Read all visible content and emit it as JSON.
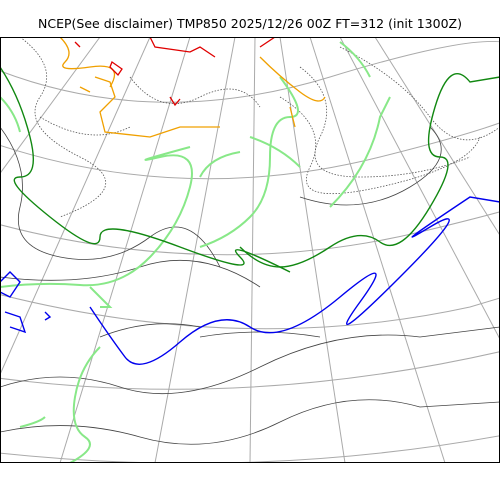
{
  "map": {
    "title": "NCEP(See disclaimer) TMP850 2025/12/26 00Z FT=312 (init 1300Z)",
    "variable": "TMP850",
    "colors": {
      "graticule": "#aaaaaa",
      "coastline": "#444444",
      "contour_dotted": "#555555",
      "isotherm_0C": "#0000ee",
      "isotherm_minus6C": "#118811",
      "isotherm_light_green": "#88e888",
      "isotherm_orange": "#f0a000",
      "isotherm_red": "#e00000"
    }
  }
}
